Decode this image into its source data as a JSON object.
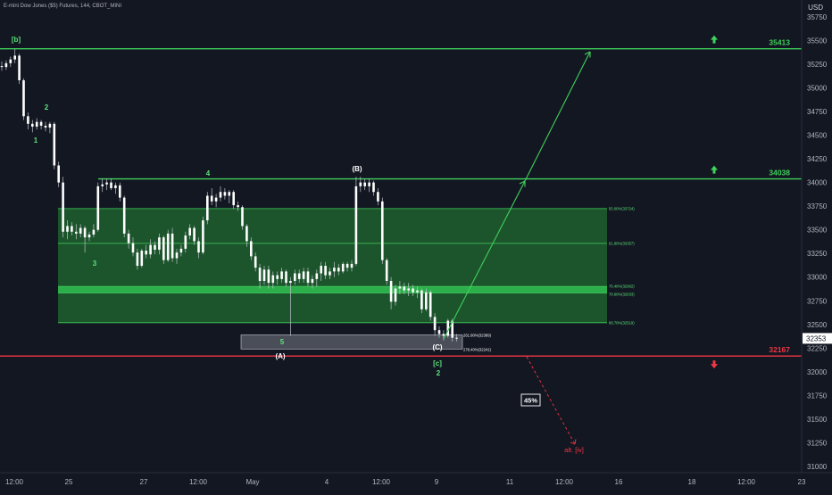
{
  "header": {
    "title": "E-mini Dow Jones ($5) Futures, 144, CBOT_MINI",
    "currency": "USD"
  },
  "colors": {
    "background": "#131722",
    "candle": "#ffffff",
    "wick": "#bfc3cc",
    "green_line": "#3fd15c",
    "green_zone": "#1f5f2e",
    "red_line": "#f23645",
    "label_green": "#5ee37a",
    "label_white": "#ffffff",
    "gray_zone": "#b2b5be"
  },
  "chart_data": {
    "type": "candlestick",
    "ylim": [
      31000,
      35750
    ],
    "y_ticks": [
      31000,
      31250,
      31500,
      31750,
      32000,
      32250,
      32500,
      32750,
      33000,
      33250,
      33500,
      33750,
      34000,
      34250,
      34500,
      34750,
      35000,
      35250,
      35500,
      35750
    ],
    "x_ticks": [
      "12:00",
      "25",
      "27",
      "12:00",
      "May",
      "4",
      "12:00",
      "9",
      "11",
      "12:00",
      "16",
      "18",
      "12:00",
      "23"
    ],
    "current_price": "32353",
    "levels": [
      {
        "name": "resistance-upper",
        "value": 35413,
        "label": "35413",
        "color": "green",
        "arrow": "up"
      },
      {
        "name": "resistance-lower",
        "value": 34038,
        "label": "34038",
        "color": "green",
        "arrow": "up"
      },
      {
        "name": "support",
        "value": 32167,
        "label": "32167",
        "color": "red",
        "arrow": "down"
      }
    ],
    "fib_levels": [
      {
        "label": "50.00%(33724)",
        "value": 33724
      },
      {
        "label": "61.80%(33357)",
        "value": 33357
      },
      {
        "label": "76.40%(32902)",
        "value": 32902
      },
      {
        "label": "78.60%(32833)",
        "value": 32833
      },
      {
        "label": "88.70%(32519)",
        "value": 32519
      }
    ],
    "extension_levels": [
      {
        "label": "261.80%(32389)",
        "value": 32389
      },
      {
        "label": "278.40%(32241)",
        "value": 32241
      }
    ],
    "wave_labels": [
      {
        "text": "[b]",
        "color": "green"
      },
      {
        "text": "2",
        "color": "green"
      },
      {
        "text": "1",
        "color": "green"
      },
      {
        "text": "3",
        "color": "green"
      },
      {
        "text": "4",
        "color": "green"
      },
      {
        "text": "5",
        "color": "green"
      },
      {
        "text": "(A)",
        "color": "white"
      },
      {
        "text": "(B)",
        "color": "white"
      },
      {
        "text": "(C)",
        "color": "white"
      },
      {
        "text": "[c]",
        "color": "green"
      },
      {
        "text": "2",
        "color": "green"
      }
    ],
    "alt_label": "alt. [iv]",
    "probability_box": "45%",
    "candles": [
      {
        "o": 35230,
        "h": 35280,
        "l": 35180,
        "c": 35220
      },
      {
        "o": 35220,
        "h": 35290,
        "l": 35190,
        "c": 35260
      },
      {
        "o": 35260,
        "h": 35330,
        "l": 35220,
        "c": 35300
      },
      {
        "o": 35300,
        "h": 35410,
        "l": 35260,
        "c": 35340
      },
      {
        "o": 35340,
        "h": 35360,
        "l": 35040,
        "c": 35080
      },
      {
        "o": 35080,
        "h": 35100,
        "l": 34660,
        "c": 34700
      },
      {
        "o": 34700,
        "h": 34740,
        "l": 34560,
        "c": 34620
      },
      {
        "o": 34620,
        "h": 34660,
        "l": 34530,
        "c": 34590
      },
      {
        "o": 34590,
        "h": 34680,
        "l": 34560,
        "c": 34640
      },
      {
        "o": 34640,
        "h": 34660,
        "l": 34560,
        "c": 34600
      },
      {
        "o": 34600,
        "h": 34640,
        "l": 34540,
        "c": 34580
      },
      {
        "o": 34580,
        "h": 34640,
        "l": 34520,
        "c": 34620
      },
      {
        "o": 34620,
        "h": 34640,
        "l": 34140,
        "c": 34180
      },
      {
        "o": 34180,
        "h": 34220,
        "l": 33950,
        "c": 34000
      },
      {
        "o": 34000,
        "h": 34060,
        "l": 33420,
        "c": 33480
      },
      {
        "o": 33480,
        "h": 33600,
        "l": 33400,
        "c": 33540
      },
      {
        "o": 33540,
        "h": 33580,
        "l": 33440,
        "c": 33480
      },
      {
        "o": 33480,
        "h": 33560,
        "l": 33400,
        "c": 33460
      },
      {
        "o": 33460,
        "h": 33560,
        "l": 33420,
        "c": 33520
      },
      {
        "o": 33520,
        "h": 33540,
        "l": 33260,
        "c": 33420
      },
      {
        "o": 33420,
        "h": 33480,
        "l": 33380,
        "c": 33450
      },
      {
        "o": 33450,
        "h": 33560,
        "l": 33420,
        "c": 33500
      },
      {
        "o": 33500,
        "h": 34000,
        "l": 33480,
        "c": 33960
      },
      {
        "o": 33960,
        "h": 34040,
        "l": 33900,
        "c": 33980
      },
      {
        "o": 33980,
        "h": 34040,
        "l": 33920,
        "c": 34000
      },
      {
        "o": 34000,
        "h": 34040,
        "l": 33920,
        "c": 33940
      },
      {
        "o": 33940,
        "h": 34000,
        "l": 33880,
        "c": 33970
      },
      {
        "o": 33970,
        "h": 34000,
        "l": 33800,
        "c": 33840
      },
      {
        "o": 33840,
        "h": 33860,
        "l": 33420,
        "c": 33460
      },
      {
        "o": 33460,
        "h": 33500,
        "l": 33300,
        "c": 33360
      },
      {
        "o": 33360,
        "h": 33420,
        "l": 33220,
        "c": 33260
      },
      {
        "o": 33260,
        "h": 33300,
        "l": 33080,
        "c": 33120
      },
      {
        "o": 33120,
        "h": 33300,
        "l": 33100,
        "c": 33280
      },
      {
        "o": 33280,
        "h": 33340,
        "l": 33200,
        "c": 33240
      },
      {
        "o": 33240,
        "h": 33400,
        "l": 33200,
        "c": 33340
      },
      {
        "o": 33340,
        "h": 33380,
        "l": 33240,
        "c": 33290
      },
      {
        "o": 33290,
        "h": 33460,
        "l": 33240,
        "c": 33420
      },
      {
        "o": 33420,
        "h": 33440,
        "l": 33140,
        "c": 33180
      },
      {
        "o": 33180,
        "h": 33500,
        "l": 33160,
        "c": 33460
      },
      {
        "o": 33460,
        "h": 33520,
        "l": 33160,
        "c": 33200
      },
      {
        "o": 33200,
        "h": 33300,
        "l": 33140,
        "c": 33260
      },
      {
        "o": 33260,
        "h": 33340,
        "l": 33220,
        "c": 33300
      },
      {
        "o": 33300,
        "h": 33480,
        "l": 33260,
        "c": 33440
      },
      {
        "o": 33440,
        "h": 33560,
        "l": 33400,
        "c": 33520
      },
      {
        "o": 33520,
        "h": 33540,
        "l": 33340,
        "c": 33380
      },
      {
        "o": 33380,
        "h": 33420,
        "l": 33200,
        "c": 33260
      },
      {
        "o": 33260,
        "h": 33640,
        "l": 33240,
        "c": 33600
      },
      {
        "o": 33600,
        "h": 33900,
        "l": 33560,
        "c": 33860
      },
      {
        "o": 33860,
        "h": 33940,
        "l": 33760,
        "c": 33800
      },
      {
        "o": 33800,
        "h": 33880,
        "l": 33740,
        "c": 33840
      },
      {
        "o": 33840,
        "h": 33960,
        "l": 33800,
        "c": 33900
      },
      {
        "o": 33900,
        "h": 33940,
        "l": 33820,
        "c": 33860
      },
      {
        "o": 33860,
        "h": 33920,
        "l": 33780,
        "c": 33900
      },
      {
        "o": 33900,
        "h": 33920,
        "l": 33720,
        "c": 33760
      },
      {
        "o": 33760,
        "h": 33800,
        "l": 33700,
        "c": 33740
      },
      {
        "o": 33740,
        "h": 33760,
        "l": 33500,
        "c": 33540
      },
      {
        "o": 33540,
        "h": 33560,
        "l": 33320,
        "c": 33380
      },
      {
        "o": 33380,
        "h": 33420,
        "l": 33180,
        "c": 33220
      },
      {
        "o": 33220,
        "h": 33260,
        "l": 33060,
        "c": 33100
      },
      {
        "o": 33100,
        "h": 33140,
        "l": 32880,
        "c": 32960
      },
      {
        "o": 32960,
        "h": 33120,
        "l": 32920,
        "c": 33080
      },
      {
        "o": 33080,
        "h": 33120,
        "l": 32880,
        "c": 32940
      },
      {
        "o": 32940,
        "h": 33060,
        "l": 32880,
        "c": 33020
      },
      {
        "o": 33020,
        "h": 33060,
        "l": 32920,
        "c": 32980
      },
      {
        "o": 32980,
        "h": 33100,
        "l": 32940,
        "c": 33060
      },
      {
        "o": 33060,
        "h": 33080,
        "l": 32900,
        "c": 32940
      },
      {
        "o": 32940,
        "h": 33000,
        "l": 32380,
        "c": 32960
      },
      {
        "o": 32960,
        "h": 33080,
        "l": 32920,
        "c": 33040
      },
      {
        "o": 33040,
        "h": 33080,
        "l": 32940,
        "c": 32980
      },
      {
        "o": 32980,
        "h": 33100,
        "l": 32940,
        "c": 33060
      },
      {
        "o": 33060,
        "h": 33100,
        "l": 32900,
        "c": 32940
      },
      {
        "o": 32940,
        "h": 33020,
        "l": 32880,
        "c": 32980
      },
      {
        "o": 32980,
        "h": 33080,
        "l": 32900,
        "c": 33040
      },
      {
        "o": 33040,
        "h": 33160,
        "l": 32960,
        "c": 33120
      },
      {
        "o": 33120,
        "h": 33160,
        "l": 32980,
        "c": 33020
      },
      {
        "o": 33020,
        "h": 33100,
        "l": 32980,
        "c": 33060
      },
      {
        "o": 33060,
        "h": 33160,
        "l": 33000,
        "c": 33100
      },
      {
        "o": 33100,
        "h": 33140,
        "l": 33020,
        "c": 33060
      },
      {
        "o": 33060,
        "h": 33160,
        "l": 33040,
        "c": 33140
      },
      {
        "o": 33140,
        "h": 33160,
        "l": 33060,
        "c": 33100
      },
      {
        "o": 33100,
        "h": 33180,
        "l": 33060,
        "c": 33140
      },
      {
        "o": 33140,
        "h": 34060,
        "l": 33120,
        "c": 33960
      },
      {
        "o": 33960,
        "h": 34060,
        "l": 33900,
        "c": 34000
      },
      {
        "o": 34000,
        "h": 34040,
        "l": 33920,
        "c": 33960
      },
      {
        "o": 33960,
        "h": 34040,
        "l": 33900,
        "c": 34000
      },
      {
        "o": 34000,
        "h": 34020,
        "l": 33860,
        "c": 33900
      },
      {
        "o": 33900,
        "h": 33940,
        "l": 33760,
        "c": 33800
      },
      {
        "o": 33800,
        "h": 33840,
        "l": 33140,
        "c": 33180
      },
      {
        "o": 33180,
        "h": 33200,
        "l": 32920,
        "c": 32960
      },
      {
        "o": 32960,
        "h": 33000,
        "l": 32660,
        "c": 32740
      },
      {
        "o": 32740,
        "h": 32920,
        "l": 32700,
        "c": 32880
      },
      {
        "o": 32880,
        "h": 32960,
        "l": 32820,
        "c": 32900
      },
      {
        "o": 32900,
        "h": 32940,
        "l": 32820,
        "c": 32860
      },
      {
        "o": 32860,
        "h": 32940,
        "l": 32800,
        "c": 32880
      },
      {
        "o": 32880,
        "h": 32920,
        "l": 32800,
        "c": 32840
      },
      {
        "o": 32840,
        "h": 32900,
        "l": 32780,
        "c": 32860
      },
      {
        "o": 32860,
        "h": 32880,
        "l": 32620,
        "c": 32660
      },
      {
        "o": 32660,
        "h": 32880,
        "l": 32640,
        "c": 32840
      },
      {
        "o": 32840,
        "h": 32860,
        "l": 32540,
        "c": 32580
      },
      {
        "o": 32580,
        "h": 32620,
        "l": 32380,
        "c": 32440
      },
      {
        "o": 32440,
        "h": 32480,
        "l": 32360,
        "c": 32400
      },
      {
        "o": 32400,
        "h": 32440,
        "l": 32330,
        "c": 32380
      },
      {
        "o": 32380,
        "h": 32560,
        "l": 32360,
        "c": 32540
      },
      {
        "o": 32540,
        "h": 32560,
        "l": 32320,
        "c": 32360
      },
      {
        "o": 32360,
        "h": 32400,
        "l": 32320,
        "c": 32353
      }
    ]
  }
}
